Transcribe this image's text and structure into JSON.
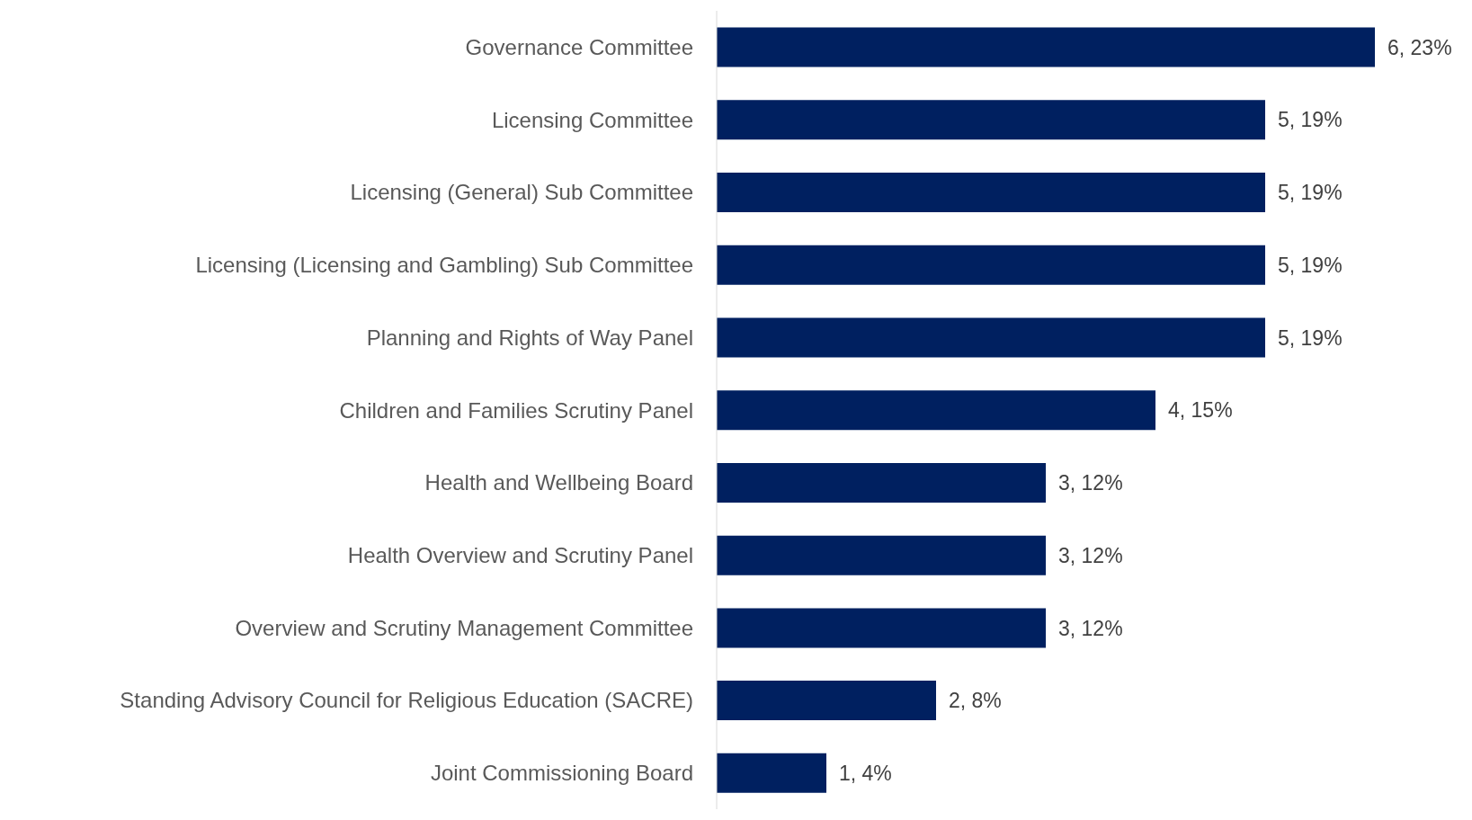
{
  "chart_data": {
    "type": "bar",
    "orientation": "horizontal",
    "categories": [
      "Governance Committee",
      "Licensing Committee",
      "Licensing (General) Sub Committee",
      "Licensing (Licensing and Gambling) Sub Committee",
      "Planning and Rights of Way Panel",
      "Children and Families Scrutiny Panel",
      "Health and Wellbeing Board",
      "Health Overview and Scrutiny Panel",
      "Overview and Scrutiny Management Committee",
      "Standing Advisory Council for Religious Education (SACRE)",
      "Joint Commissioning Board"
    ],
    "values": [
      6,
      5,
      5,
      5,
      5,
      4,
      3,
      3,
      3,
      2,
      1
    ],
    "value_labels": [
      "6, 23%",
      "5, 19%",
      "5, 19%",
      "5, 19%",
      "5, 19%",
      "4, 15%",
      "3, 12%",
      "3, 12%",
      "3, 12%",
      "2, 8%",
      "1, 4%"
    ],
    "color": "#002060"
  }
}
